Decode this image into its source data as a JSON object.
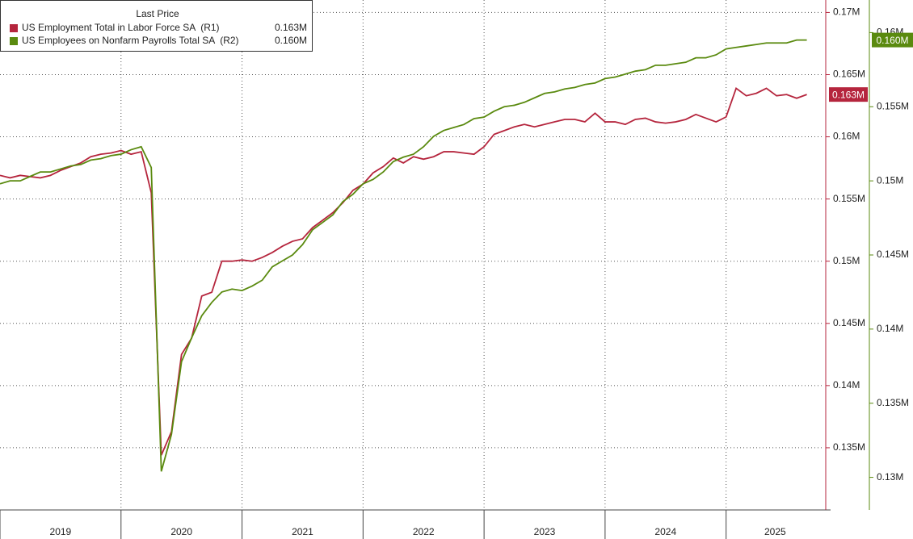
{
  "chart_data": {
    "type": "line",
    "legend_title": "Last Price",
    "x": [
      2019,
      2019.083,
      2019.167,
      2019.25,
      2019.333,
      2019.417,
      2019.5,
      2019.583,
      2019.667,
      2019.75,
      2019.833,
      2019.917,
      2020,
      2020.083,
      2020.167,
      2020.25,
      2020.333,
      2020.417,
      2020.5,
      2020.583,
      2020.667,
      2020.75,
      2020.833,
      2020.917,
      2021,
      2021.083,
      2021.167,
      2021.25,
      2021.333,
      2021.417,
      2021.5,
      2021.583,
      2021.667,
      2021.75,
      2021.833,
      2021.917,
      2022,
      2022.083,
      2022.167,
      2022.25,
      2022.333,
      2022.417,
      2022.5,
      2022.583,
      2022.667,
      2022.75,
      2022.833,
      2022.917,
      2023,
      2023.083,
      2023.167,
      2023.25,
      2023.333,
      2023.417,
      2023.5,
      2023.583,
      2023.667,
      2023.75,
      2023.833,
      2023.917,
      2024,
      2024.083,
      2024.167,
      2024.25,
      2024.333,
      2024.417,
      2024.5,
      2024.583,
      2024.667,
      2024.75,
      2024.833,
      2024.917,
      2025,
      2025.083,
      2025.167,
      2025.25,
      2025.333,
      2025.417,
      2025.5,
      2025.583,
      2025.667
    ],
    "series": [
      {
        "name": "US Employment Total in Labor Force SA  (R1)",
        "color": "#b5253d",
        "axis": "y",
        "last_label": "0.163M",
        "values": [
          0.1569,
          0.1567,
          0.1569,
          0.1568,
          0.1567,
          0.1569,
          0.1573,
          0.1576,
          0.1579,
          0.1584,
          0.1586,
          0.1587,
          0.1589,
          0.1586,
          0.1588,
          0.1555,
          0.1344,
          0.1363,
          0.1425,
          0.1438,
          0.1472,
          0.1475,
          0.15,
          0.15,
          0.1501,
          0.15,
          0.1503,
          0.1507,
          0.1512,
          0.1516,
          0.1518,
          0.1527,
          0.1533,
          0.1539,
          0.1547,
          0.1557,
          0.1562,
          0.1571,
          0.1576,
          0.1583,
          0.1579,
          0.1584,
          0.1582,
          0.1584,
          0.1588,
          0.1588,
          0.1587,
          0.1586,
          0.1592,
          0.1602,
          0.1605,
          0.1608,
          0.161,
          0.1608,
          0.161,
          0.1612,
          0.1614,
          0.1614,
          0.1612,
          0.1619,
          0.1612,
          0.1612,
          0.161,
          0.1614,
          0.1615,
          0.1612,
          0.1611,
          0.1612,
          0.1614,
          0.1618,
          0.1615,
          0.1612,
          0.1616,
          0.1639,
          0.1633,
          0.1635,
          0.1639,
          0.1633,
          0.1634,
          0.1631,
          0.1634
        ]
      },
      {
        "name": "US Employees on Nonfarm Payrolls Total SA  (R2)",
        "color": "#5a8a0f",
        "axis": "y2",
        "last_label": "0.160M",
        "values": [
          0.1498,
          0.15,
          0.15,
          0.1503,
          0.1506,
          0.1506,
          0.1508,
          0.151,
          0.1511,
          0.1514,
          0.1515,
          0.1517,
          0.1518,
          0.1521,
          0.1523,
          0.1509,
          0.1304,
          0.1329,
          0.1378,
          0.1394,
          0.1409,
          0.1418,
          0.1425,
          0.1427,
          0.1426,
          0.1429,
          0.1433,
          0.1442,
          0.1446,
          0.145,
          0.1457,
          0.1467,
          0.1472,
          0.1477,
          0.1486,
          0.1491,
          0.1498,
          0.1501,
          0.1506,
          0.1513,
          0.1516,
          0.1518,
          0.1523,
          0.153,
          0.1534,
          0.1536,
          0.1538,
          0.1542,
          0.1543,
          0.1547,
          0.155,
          0.1551,
          0.1553,
          0.1556,
          0.1559,
          0.156,
          0.1562,
          0.1563,
          0.1565,
          0.1566,
          0.1569,
          0.157,
          0.1572,
          0.1574,
          0.1575,
          0.1578,
          0.1578,
          0.1579,
          0.158,
          0.1583,
          0.1583,
          0.1585,
          0.1589,
          0.159,
          0.1591,
          0.1592,
          0.1593,
          0.1593,
          0.1593,
          0.1595,
          0.1595
        ]
      }
    ],
    "xlim": [
      2019,
      2025.81
    ],
    "xticks": [
      2019,
      2020,
      2021,
      2022,
      2023,
      2024,
      2025
    ],
    "ylim": [
      0.13,
      0.171
    ],
    "yticks": [
      {
        "value": 0.135,
        "label": "0.135M"
      },
      {
        "value": 0.14,
        "label": "0.14M"
      },
      {
        "value": 0.145,
        "label": "0.145M"
      },
      {
        "value": 0.15,
        "label": "0.15M"
      },
      {
        "value": 0.155,
        "label": "0.155M"
      },
      {
        "value": 0.16,
        "label": "0.16M"
      },
      {
        "value": 0.165,
        "label": "0.165M"
      },
      {
        "value": 0.17,
        "label": "0.17M"
      }
    ],
    "y2lim": [
      0.1278,
      0.1622
    ],
    "y2ticks": [
      {
        "value": 0.13,
        "label": "0.13M"
      },
      {
        "value": 0.135,
        "label": "0.135M"
      },
      {
        "value": 0.14,
        "label": "0.14M"
      },
      {
        "value": 0.145,
        "label": "0.145M"
      },
      {
        "value": 0.15,
        "label": "0.15M"
      },
      {
        "value": 0.155,
        "label": "0.155M"
      },
      {
        "value": 0.16,
        "label": "0.16M"
      }
    ],
    "grid": true,
    "legend_position": "top-left"
  }
}
